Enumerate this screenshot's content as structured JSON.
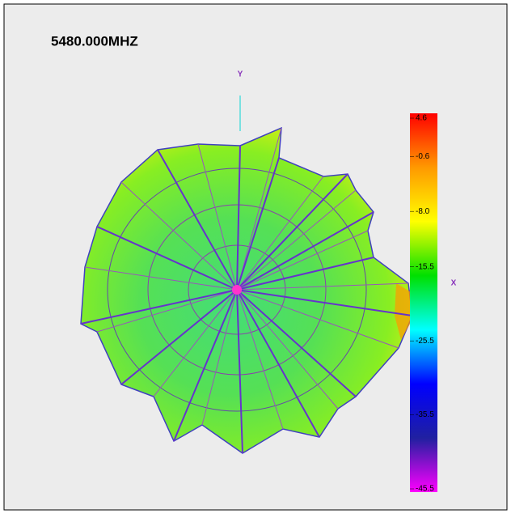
{
  "chart_data": {
    "type": "radiation-pattern",
    "title": "5480.000MHZ",
    "x_label": "X",
    "y_label": "Y",
    "colorbar": {
      "clim": [
        -45.5,
        4.6
      ],
      "ticks": [
        4.6,
        -0.6,
        {
          "value": -8,
          "label": "-8.0"
        },
        -15.5,
        -25.5,
        -35.5,
        -45.5
      ],
      "colormap": [
        "#ff0000",
        "#ff9900",
        "#ffff00",
        "#00e000",
        "#00ffff",
        "#0000ff",
        "#2020a0",
        "#ff00ff"
      ]
    }
  }
}
